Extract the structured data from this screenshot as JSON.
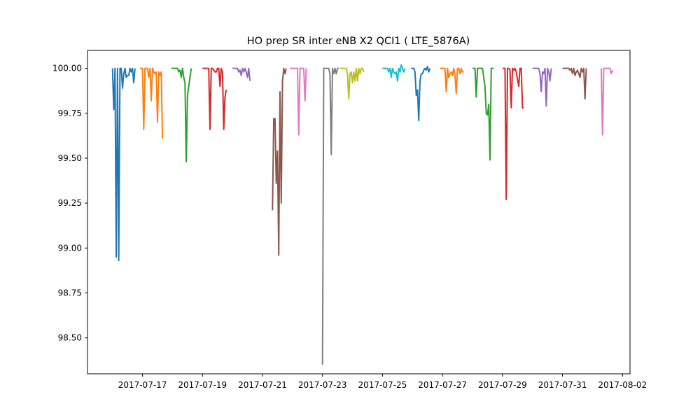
{
  "chart_data": {
    "type": "line",
    "title": "HO prep SR inter eNB X2 QCI1 ( LTE_5876A)",
    "xlabel": "",
    "ylabel": "",
    "x_ticks": [
      "2017-07-17",
      "2017-07-19",
      "2017-07-21",
      "2017-07-23",
      "2017-07-25",
      "2017-07-27",
      "2017-07-29",
      "2017-07-31",
      "2017-08-02"
    ],
    "y_ticks": [
      "98.50",
      "98.75",
      "99.00",
      "99.25",
      "99.50",
      "99.75",
      "100.00"
    ],
    "xlim": [
      "2017-07-15T04:00",
      "2017-08-02T06:00"
    ],
    "ylim": [
      98.3,
      100.1
    ],
    "grid": false,
    "legend": "none",
    "series": [
      {
        "color": "#1f77b4",
        "start": "2017-07-16T00:00",
        "values": [
          100.0,
          99.77,
          100.0,
          98.95,
          100.0,
          98.93,
          100.0,
          100.0,
          99.89,
          99.97,
          100.0,
          99.95,
          99.96,
          99.96,
          100.0,
          99.98,
          100.0,
          99.92,
          100.0
        ]
      },
      {
        "color": "#ff7f0e",
        "start": "2017-07-16T22:00",
        "values": [
          100.0,
          100.0,
          100.0,
          99.66,
          100.0,
          100.0,
          100.0,
          99.95,
          100.0,
          99.82,
          100.0,
          99.98,
          99.97,
          99.98,
          99.7,
          99.98,
          99.96,
          99.98,
          99.61
        ]
      },
      {
        "color": "#2ca02c",
        "start": "2017-07-17T23:00",
        "values": [
          100.0,
          100.0,
          100.0,
          100.0,
          100.0,
          100.0,
          99.98,
          99.99,
          99.95,
          100.0,
          99.95,
          99.92,
          99.48,
          99.85,
          99.9,
          99.95,
          100.0
        ]
      },
      {
        "color": "#d62728",
        "start": "2017-07-19T00:00",
        "values": [
          100.0,
          100.0,
          100.0,
          100.0,
          100.0,
          100.0,
          99.66,
          100.0,
          100.0,
          99.99,
          99.98,
          99.98,
          100.0,
          100.0,
          99.9,
          100.0,
          99.98,
          99.66,
          99.84,
          99.88
        ]
      },
      {
        "color": "#9467bd",
        "start": "2017-07-20T00:00",
        "values": [
          100.0,
          100.0,
          100.0,
          100.0,
          100.0,
          99.98,
          99.99,
          99.96,
          100.0,
          99.98,
          100.0,
          99.98,
          99.95,
          100.0,
          99.93
        ]
      },
      {
        "color": "#8c564b",
        "start": "2017-07-21T08:00",
        "values": [
          99.21,
          99.72,
          99.72,
          99.36,
          99.54,
          98.96,
          99.87,
          99.25,
          99.93,
          100.0,
          99.97,
          100.0
        ]
      },
      {
        "color": "#e377c2",
        "start": "2017-07-21T22:00",
        "values": [
          100.0,
          100.0,
          100.0,
          100.0,
          100.0,
          100.0,
          100.0,
          99.63,
          100.0,
          100.0,
          100.0,
          100.0,
          99.82,
          100.0
        ]
      },
      {
        "color": "#7f7f7f",
        "start": "2017-07-23T00:00",
        "values": [
          98.35,
          100.0,
          100.0,
          100.0,
          100.0,
          100.0,
          99.97,
          99.52,
          100.0,
          99.97,
          100.0,
          99.97,
          100.0,
          100.0
        ]
      },
      {
        "color": "#bcbd22",
        "start": "2017-07-23T14:00",
        "values": [
          100.0,
          100.0,
          100.0,
          100.0,
          100.0,
          100.0,
          99.97,
          99.83,
          99.97,
          99.98,
          99.92,
          99.98,
          99.93,
          100.0,
          99.93,
          100.0,
          99.97,
          100.0,
          100.0,
          99.98
        ]
      },
      {
        "color": "#17becf",
        "start": "2017-07-25T00:00",
        "values": [
          100.0,
          100.0,
          100.0,
          100.0,
          100.0,
          99.98,
          100.0,
          99.95,
          100.0,
          99.98,
          99.97,
          99.98,
          99.93,
          100.0,
          99.98,
          100.02,
          100.0,
          99.98,
          100.0
        ]
      },
      {
        "color": "#1f77b4",
        "start": "2017-07-25T23:00",
        "values": [
          100.0,
          100.0,
          100.0,
          99.98,
          99.85,
          99.88,
          99.71,
          99.93,
          99.97,
          99.97,
          99.99,
          100.0,
          99.99,
          100.01,
          99.98,
          100.0
        ]
      },
      {
        "color": "#ff7f0e",
        "start": "2017-07-26T22:00",
        "values": [
          100.0,
          100.0,
          100.0,
          100.0,
          100.0,
          99.87,
          100.0,
          99.95,
          99.97,
          99.98,
          99.96,
          100.0,
          99.96,
          99.86,
          100.0,
          100.0,
          99.97,
          100.0,
          99.98,
          99.98
        ]
      },
      {
        "color": "#2ca02c",
        "start": "2017-07-28T00:00",
        "values": [
          100.0,
          100.0,
          100.0,
          99.84,
          100.0,
          100.0,
          100.0,
          100.0,
          100.0,
          99.95,
          99.9,
          99.75,
          99.74,
          99.8,
          99.49,
          100.0,
          100.0,
          100.0
        ]
      },
      {
        "color": "#d62728",
        "start": "2017-07-29T00:00",
        "values": [
          100.0,
          100.0,
          100.0,
          99.27,
          100.0,
          100.0,
          99.99,
          99.78,
          100.0,
          99.99,
          100.0,
          99.98,
          99.94,
          99.9,
          100.0,
          100.0,
          99.78,
          99.78
        ]
      },
      {
        "color": "#9467bd",
        "start": "2017-07-30T00:00",
        "values": [
          100.0,
          100.0,
          100.0,
          100.0,
          100.0,
          100.0,
          99.97,
          99.87,
          99.98,
          99.97,
          100.0,
          99.79,
          100.0,
          99.98,
          99.93,
          100.0
        ]
      },
      {
        "color": "#8c564b",
        "start": "2017-07-31T00:00",
        "values": [
          100.0,
          100.0,
          100.0,
          100.0,
          100.0,
          100.0,
          99.99,
          100.0,
          99.97,
          100.0,
          99.96,
          99.98,
          99.99,
          99.97,
          99.95,
          100.0,
          99.98,
          100.0,
          99.83,
          100.0
        ]
      },
      {
        "color": "#e377c2",
        "start": "2017-08-01T07:00",
        "values": [
          100.0,
          99.63,
          100.0,
          100.0,
          100.0,
          100.0,
          100.0,
          100.0,
          99.97,
          99.99
        ]
      }
    ]
  }
}
